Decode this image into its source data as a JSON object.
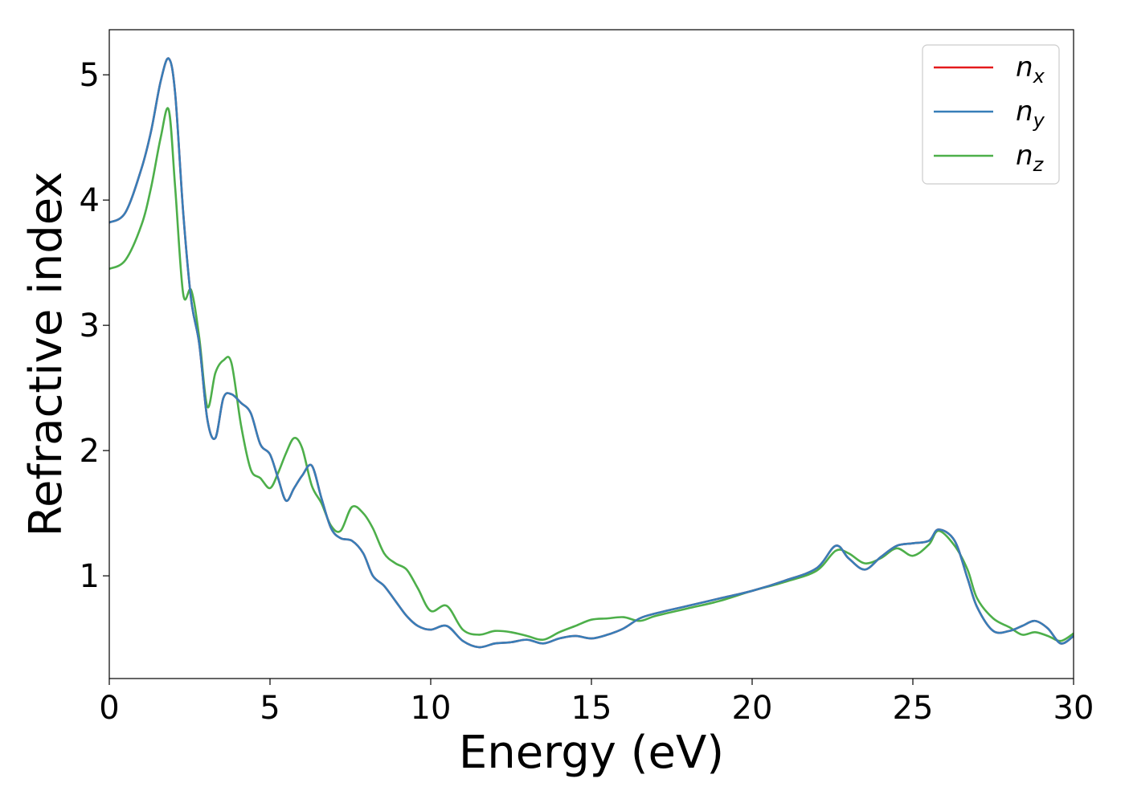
{
  "chart_data": {
    "type": "line",
    "xlabel": "Energy (eV)",
    "ylabel": "Refractive index",
    "xlim": [
      0,
      30
    ],
    "ylim": [
      0.18,
      5.36
    ],
    "x_ticks": [
      "0",
      "5",
      "10",
      "15",
      "20",
      "25",
      "30"
    ],
    "y_ticks": [
      "1",
      "2",
      "3",
      "4",
      "5"
    ],
    "grid": false,
    "legend_position": "top-right",
    "x": [
      0,
      0.5,
      1.0,
      1.3,
      1.6,
      1.85,
      2.05,
      2.3,
      2.55,
      2.8,
      3.05,
      3.3,
      3.55,
      3.8,
      4.1,
      4.4,
      4.7,
      5.0,
      5.25,
      5.5,
      5.75,
      6.0,
      6.3,
      6.6,
      6.9,
      7.2,
      7.55,
      7.9,
      8.2,
      8.55,
      8.9,
      9.25,
      9.6,
      10.0,
      10.5,
      11.0,
      11.5,
      12.0,
      12.5,
      13.0,
      13.5,
      14.0,
      14.5,
      15.0,
      15.5,
      16.0,
      16.5,
      17.0,
      18.0,
      19.0,
      20.0,
      21.0,
      22.0,
      22.6,
      23.0,
      23.5,
      24.0,
      24.5,
      25.0,
      25.5,
      25.8,
      26.3,
      26.7,
      27.0,
      27.5,
      28.0,
      28.4,
      28.8,
      29.2,
      29.6,
      30.0
    ],
    "series": [
      {
        "name": "n_x",
        "color": "#e41a1c",
        "values": [
          3.82,
          3.9,
          4.25,
          4.55,
          4.95,
          5.13,
          4.85,
          3.9,
          3.2,
          2.85,
          2.25,
          2.1,
          2.42,
          2.45,
          2.38,
          2.3,
          2.05,
          1.97,
          1.78,
          1.6,
          1.7,
          1.8,
          1.88,
          1.62,
          1.38,
          1.3,
          1.28,
          1.18,
          1.0,
          0.92,
          0.8,
          0.68,
          0.6,
          0.57,
          0.6,
          0.48,
          0.43,
          0.46,
          0.47,
          0.49,
          0.46,
          0.5,
          0.52,
          0.5,
          0.53,
          0.58,
          0.66,
          0.7,
          0.76,
          0.82,
          0.88,
          0.96,
          1.06,
          1.24,
          1.14,
          1.05,
          1.15,
          1.24,
          1.26,
          1.28,
          1.37,
          1.28,
          0.98,
          0.75,
          0.56,
          0.56,
          0.6,
          0.64,
          0.58,
          0.46,
          0.52
        ]
      },
      {
        "name": "n_y",
        "color": "#377eb8",
        "values": [
          3.82,
          3.9,
          4.25,
          4.55,
          4.95,
          5.13,
          4.85,
          3.9,
          3.2,
          2.85,
          2.25,
          2.1,
          2.42,
          2.45,
          2.38,
          2.3,
          2.05,
          1.97,
          1.78,
          1.6,
          1.7,
          1.8,
          1.88,
          1.62,
          1.38,
          1.3,
          1.28,
          1.18,
          1.0,
          0.92,
          0.8,
          0.68,
          0.6,
          0.57,
          0.6,
          0.48,
          0.43,
          0.46,
          0.47,
          0.49,
          0.46,
          0.5,
          0.52,
          0.5,
          0.53,
          0.58,
          0.66,
          0.7,
          0.76,
          0.82,
          0.88,
          0.96,
          1.06,
          1.24,
          1.14,
          1.05,
          1.15,
          1.24,
          1.26,
          1.28,
          1.37,
          1.28,
          0.98,
          0.75,
          0.56,
          0.56,
          0.6,
          0.64,
          0.58,
          0.46,
          0.52
        ]
      },
      {
        "name": "n_z",
        "color": "#4daf4a",
        "values": [
          3.45,
          3.52,
          3.8,
          4.1,
          4.5,
          4.72,
          4.1,
          3.25,
          3.28,
          2.9,
          2.35,
          2.62,
          2.72,
          2.7,
          2.2,
          1.85,
          1.78,
          1.7,
          1.82,
          1.98,
          2.1,
          2.02,
          1.72,
          1.58,
          1.4,
          1.36,
          1.55,
          1.5,
          1.38,
          1.18,
          1.1,
          1.05,
          0.9,
          0.72,
          0.76,
          0.57,
          0.53,
          0.56,
          0.55,
          0.52,
          0.49,
          0.55,
          0.6,
          0.65,
          0.66,
          0.67,
          0.64,
          0.68,
          0.74,
          0.8,
          0.88,
          0.95,
          1.04,
          1.2,
          1.18,
          1.1,
          1.14,
          1.22,
          1.16,
          1.25,
          1.36,
          1.24,
          1.05,
          0.82,
          0.66,
          0.59,
          0.53,
          0.55,
          0.52,
          0.48,
          0.54
        ]
      }
    ]
  },
  "legend": {
    "entries": [
      {
        "base": "n",
        "sub": "x"
      },
      {
        "base": "n",
        "sub": "y"
      },
      {
        "base": "n",
        "sub": "z"
      }
    ]
  }
}
